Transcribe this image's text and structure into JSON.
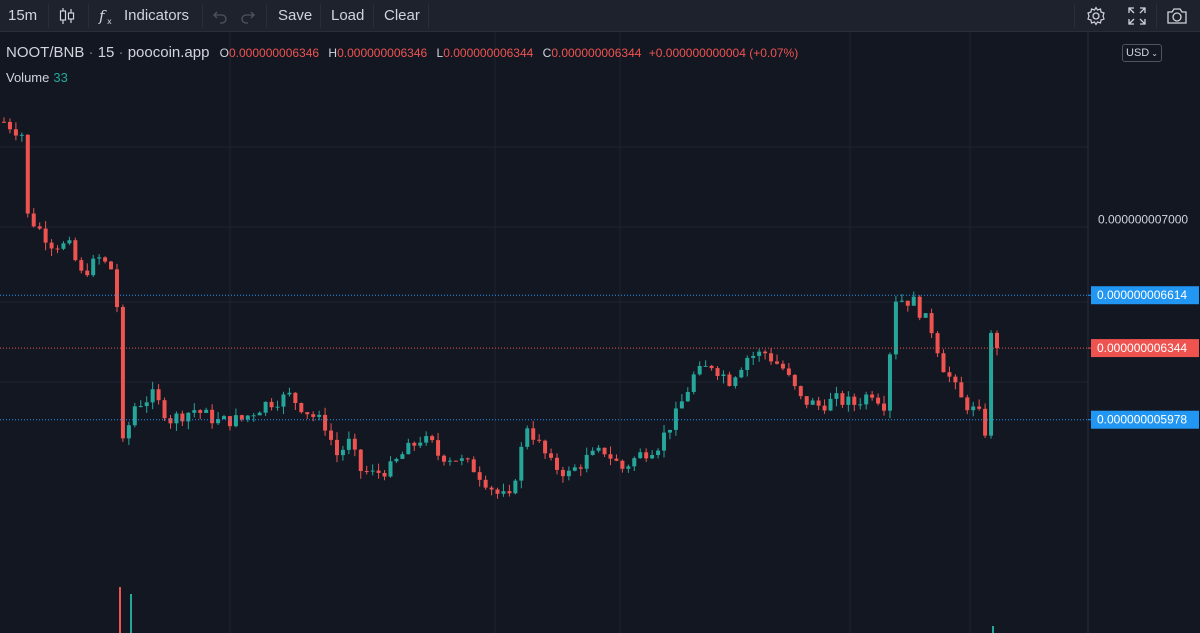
{
  "toolbar": {
    "interval": "15m",
    "indicators_label": "Indicators",
    "save_label": "Save",
    "load_label": "Load",
    "clear_label": "Clear"
  },
  "legend": {
    "symbol": "NOOT/BNB",
    "interval": "15",
    "source": "poocoin.app",
    "open_label": "O",
    "open": "0.000000006346",
    "high_label": "H",
    "high": "0.000000006346",
    "low_label": "L",
    "low": "0.000000006344",
    "close_label": "C",
    "close": "0.000000006344",
    "change": "+0.000000000004 (+0.07%)"
  },
  "volume": {
    "label": "Volume",
    "value": "33"
  },
  "currency": "USD",
  "colors": {
    "up": "#26a69a",
    "down": "#ef5350",
    "background": "#131722",
    "grid": "#1f2330",
    "blue_marker": "#2196f3",
    "red_marker": "#ef5350"
  },
  "chart_data": {
    "type": "candlestick",
    "y_axis_ticks": [
      "0.000000007000"
    ],
    "price_lines": [
      {
        "value": "0.000000006614",
        "kind": "blue"
      },
      {
        "value": "0.000000006344",
        "kind": "red"
      },
      {
        "value": "0.000000005978",
        "kind": "blue"
      }
    ],
    "ylim": [
      5.2e-09,
      7.55e-09
    ],
    "close_path": [
      [
        0,
        7.5e-09
      ],
      [
        3,
        7.44e-09
      ],
      [
        4,
        7.02e-09
      ],
      [
        8,
        6.88e-09
      ],
      [
        11,
        6.86e-09
      ],
      [
        13,
        6.72e-09
      ],
      [
        16,
        6.8e-09
      ],
      [
        18,
        6.75e-09
      ],
      [
        19,
        6.56e-09
      ],
      [
        20,
        5.85e-09
      ],
      [
        22,
        6.05e-09
      ],
      [
        25,
        6.1e-09
      ],
      [
        28,
        5.98e-09
      ],
      [
        32,
        6.03e-09
      ],
      [
        36,
        5.97e-09
      ],
      [
        40,
        5.98e-09
      ],
      [
        44,
        6.06e-09
      ],
      [
        48,
        6.1e-09
      ],
      [
        51,
        6.02e-09
      ],
      [
        54,
        5.95e-09
      ],
      [
        56,
        5.8e-09
      ],
      [
        58,
        5.86e-09
      ],
      [
        60,
        5.72e-09
      ],
      [
        62,
        5.7e-09
      ],
      [
        65,
        5.73e-09
      ],
      [
        67,
        5.8e-09
      ],
      [
        70,
        5.88e-09
      ],
      [
        72,
        5.85e-09
      ],
      [
        73,
        5.8e-09
      ],
      [
        76,
        5.78e-09
      ],
      [
        79,
        5.73e-09
      ],
      [
        83,
        5.6e-09
      ],
      [
        85,
        5.57e-09
      ],
      [
        88,
        5.95e-09
      ],
      [
        92,
        5.75e-09
      ],
      [
        95,
        5.7e-09
      ],
      [
        98,
        5.78e-09
      ],
      [
        101,
        5.82e-09
      ],
      [
        104,
        5.73e-09
      ],
      [
        107,
        5.8e-09
      ],
      [
        110,
        5.85e-09
      ],
      [
        113,
        6e-09
      ],
      [
        116,
        6.2e-09
      ],
      [
        119,
        6.26e-09
      ],
      [
        122,
        6.18e-09
      ],
      [
        125,
        6.3e-09
      ],
      [
        128,
        6.32e-09
      ],
      [
        131,
        6.24e-09
      ],
      [
        134,
        6.08e-09
      ],
      [
        137,
        6.05e-09
      ],
      [
        140,
        6.08e-09
      ],
      [
        143,
        6.06e-09
      ],
      [
        146,
        6.12e-09
      ],
      [
        148,
        6.06e-09
      ],
      [
        150,
        6.6e-09
      ],
      [
        153,
        6.58e-09
      ],
      [
        156,
        6.44e-09
      ],
      [
        158,
        6.25e-09
      ],
      [
        161,
        6.08e-09
      ],
      [
        164,
        6e-09
      ],
      [
        165,
        5.92e-09
      ],
      [
        166,
        6.4e-09
      ],
      [
        167,
        6.344e-09
      ]
    ]
  }
}
